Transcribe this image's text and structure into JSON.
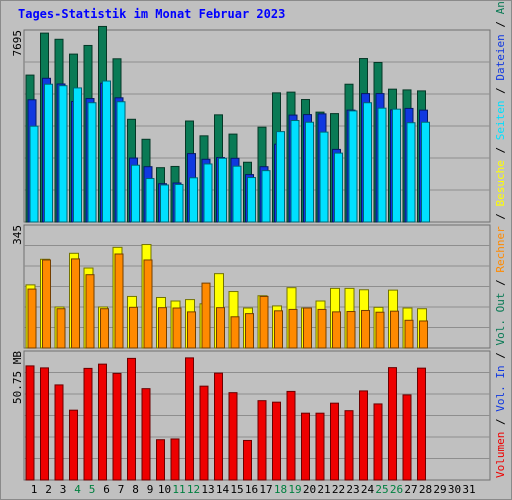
{
  "title": "Tages-Statistik im Monat Februar 2023",
  "colors": {
    "anfragen": "#0a7a55",
    "dateien": "#1038e0",
    "seiten": "#00e0ff",
    "besuche": "#ffff00",
    "rechner": "#ff8a00",
    "volumen": "#ee0000",
    "plot_bg": "#c0c0c0",
    "grid": "#8e8e8e",
    "title": "#0000ff",
    "weekend_label": "#008040"
  },
  "chart_data": [
    {
      "type": "bar",
      "panel": "requests",
      "y_max_label": "7695",
      "ylim": [
        0,
        7695
      ],
      "grid": true,
      "series": [
        {
          "name": "Anfragen",
          "color_key": "anfragen",
          "values": [
            5950,
            7650,
            7400,
            6800,
            7150,
            7920,
            6610,
            4160,
            3350,
            2200,
            2250,
            4090,
            3490,
            4340,
            3560,
            2420,
            3840,
            5230,
            5260,
            4960,
            4450,
            4390,
            5580,
            6620,
            6460,
            5380,
            5350,
            5310
          ]
        },
        {
          "name": "Dateien",
          "color_key": "dateien",
          "values": [
            4950,
            5820,
            5590,
            4880,
            5000,
            5620,
            5030,
            2590,
            2240,
            1550,
            1580,
            2770,
            2540,
            2610,
            2580,
            1920,
            2240,
            3150,
            4330,
            4350,
            4380,
            2940,
            4530,
            5200,
            5200,
            4540,
            4600,
            4530
          ]
        },
        {
          "name": "Seiten",
          "color_key": "seiten",
          "values": [
            3880,
            5580,
            5520,
            5430,
            4830,
            5710,
            4870,
            2300,
            1760,
            1500,
            1520,
            1790,
            2350,
            2580,
            2260,
            1800,
            2080,
            3660,
            4110,
            4040,
            3640,
            2790,
            4500,
            4830,
            4610,
            4570,
            4020,
            4040
          ]
        }
      ]
    },
    {
      "type": "bar",
      "panel": "visits",
      "y_max_label": "345",
      "ylim": [
        0,
        345
      ],
      "grid": true,
      "series": [
        {
          "name": "Besuche",
          "color_key": "besuche",
          "values": [
            180,
            253,
            117,
            270,
            228,
            117,
            287,
            147,
            295,
            144,
            134,
            138,
            126,
            212,
            161,
            114,
            149,
            120,
            172,
            114,
            134,
            170,
            170,
            166,
            116,
            165,
            114,
            112
          ]
        },
        {
          "name": "Rechner",
          "color_key": "rechner",
          "values": [
            168,
            251,
            112,
            254,
            209,
            112,
            268,
            116,
            251,
            115,
            114,
            103,
            185,
            115,
            89,
            98,
            147,
            106,
            110,
            114,
            110,
            103,
            104,
            107,
            102,
            105,
            79,
            77
          ]
        }
      ]
    },
    {
      "type": "bar",
      "panel": "volume",
      "y_max_label": "50.75 MB",
      "ylim": [
        0,
        50.75
      ],
      "grid": true,
      "series": [
        {
          "name": "Volumen",
          "color_key": "volumen",
          "values": [
            45.6,
            44.8,
            38.0,
            27.9,
            44.6,
            46.3,
            42.6,
            48.6,
            36.5,
            16.1,
            16.4,
            48.8,
            37.5,
            42.7,
            34.9,
            15.8,
            31.7,
            31.1,
            35.4,
            26.7,
            26.7,
            30.7,
            27.7,
            35.6,
            30.4,
            44.9,
            34.0,
            44.7
          ]
        }
      ]
    }
  ],
  "x_axis": {
    "days": [
      "1",
      "2",
      "3",
      "4",
      "5",
      "6",
      "7",
      "8",
      "9",
      "10",
      "11",
      "12",
      "13",
      "14",
      "15",
      "16",
      "17",
      "18",
      "19",
      "20",
      "21",
      "22",
      "23",
      "24",
      "25",
      "26",
      "27",
      "28",
      "29",
      "30",
      "31"
    ],
    "weekend_days": [
      4,
      5,
      11,
      12,
      18,
      19,
      25,
      26
    ]
  },
  "legend_right": [
    {
      "text": "Volumen",
      "color_key": "volumen"
    },
    {
      "text": "Vol. In",
      "color_key": "dateien"
    },
    {
      "text": "Vol. Out",
      "color_key": "anfragen"
    },
    {
      "text": "Rechner",
      "color_key": "rechner"
    },
    {
      "text": "Besuche",
      "color_key": "besuche"
    },
    {
      "text": "Seiten",
      "color_key": "seiten"
    },
    {
      "text": "Dateien",
      "color_key": "dateien"
    },
    {
      "text": "Anfragen",
      "color_key": "anfragen"
    }
  ]
}
